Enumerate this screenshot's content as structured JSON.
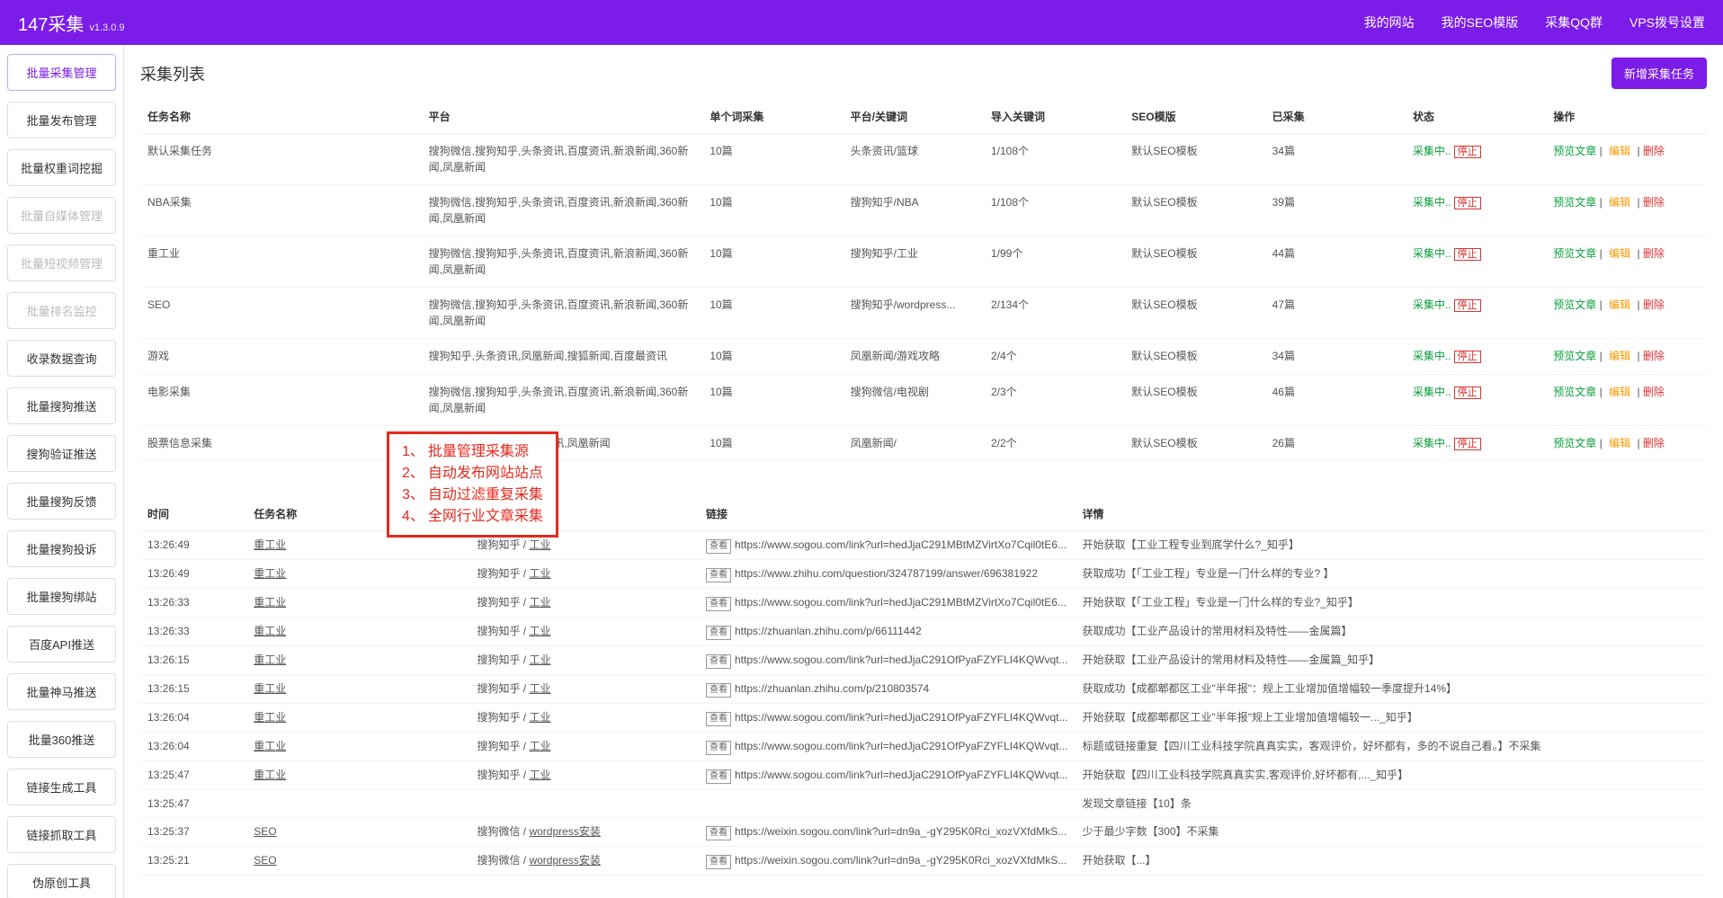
{
  "header": {
    "logo": "147采集",
    "version": "v1.3.0.9",
    "nav": [
      "我的网站",
      "我的SEO模版",
      "采集QQ群",
      "VPS拨号设置"
    ]
  },
  "sidebar": [
    {
      "label": "批量采集管理",
      "active": true
    },
    {
      "label": "批量发布管理"
    },
    {
      "label": "批量权重词挖掘"
    },
    {
      "label": "批量自媒体管理",
      "disabled": true
    },
    {
      "label": "批量短视频管理",
      "disabled": true
    },
    {
      "label": "批量排名监控",
      "disabled": true
    },
    {
      "label": "收录数据查询"
    },
    {
      "label": "批量搜狗推送"
    },
    {
      "label": "搜狗验证推送"
    },
    {
      "label": "批量搜狗反馈"
    },
    {
      "label": "批量搜狗投诉"
    },
    {
      "label": "批量搜狗绑站"
    },
    {
      "label": "百度API推送"
    },
    {
      "label": "批量神马推送"
    },
    {
      "label": "批量360推送"
    },
    {
      "label": "链接生成工具"
    },
    {
      "label": "链接抓取工具"
    },
    {
      "label": "伪原创工具"
    }
  ],
  "tasks": {
    "title": "采集列表",
    "add_btn": "新增采集任务",
    "headers": [
      "任务名称",
      "平台",
      "单个词采集",
      "平台/关键词",
      "导入关键词",
      "SEO模版",
      "已采集",
      "状态",
      "操作"
    ],
    "status_run": "采集中..",
    "status_stop": "停止",
    "ops": {
      "preview": "预览文章",
      "edit": "编辑",
      "del": "删除"
    },
    "rows": [
      {
        "name": "默认采集任务",
        "plat": "搜狗微信,搜狗知乎,头条资讯,百度资讯,新浪新闻,360新闻,凤凰新闻",
        "single": "10篇",
        "kw": "头条资讯/篮球",
        "import": "1/108个",
        "seo": "默认SEO模板",
        "cnt": "34篇"
      },
      {
        "name": "NBA采集",
        "plat": "搜狗微信,搜狗知乎,头条资讯,百度资讯,新浪新闻,360新闻,凤凰新闻",
        "single": "10篇",
        "kw": "搜狗知乎/NBA",
        "import": "1/108个",
        "seo": "默认SEO模板",
        "cnt": "39篇"
      },
      {
        "name": "重工业",
        "plat": "搜狗微信,搜狗知乎,头条资讯,百度资讯,新浪新闻,360新闻,凤凰新闻",
        "single": "10篇",
        "kw": "搜狗知乎/工业",
        "import": "1/99个",
        "seo": "默认SEO模板",
        "cnt": "44篇"
      },
      {
        "name": "SEO",
        "plat": "搜狗微信,搜狗知乎,头条资讯,百度资讯,新浪新闻,360新闻,凤凰新闻",
        "single": "10篇",
        "kw": "搜狗知乎/wordpress...",
        "import": "2/134个",
        "seo": "默认SEO模板",
        "cnt": "47篇"
      },
      {
        "name": "游戏",
        "plat": "搜狗知乎,头条资讯,凤凰新闻,搜狐新闻,百度最资讯",
        "single": "10篇",
        "kw": "凤凰新闻/游戏攻略",
        "import": "2/4个",
        "seo": "默认SEO模板",
        "cnt": "34篇"
      },
      {
        "name": "电影采集",
        "plat": "搜狗微信,搜狗知乎,头条资讯,百度资讯,新浪新闻,360新闻,凤凰新闻",
        "single": "10篇",
        "kw": "搜狗微信/电视剧",
        "import": "2/3个",
        "seo": "默认SEO模板",
        "cnt": "46篇"
      },
      {
        "name": "股票信息采集",
        "plat": "搜狗微信,头条资讯,百度资讯,凤凰新闻",
        "single": "10篇",
        "kw": "凤凰新闻/",
        "import": "2/2个",
        "seo": "默认SEO模板",
        "cnt": "26篇"
      }
    ]
  },
  "redbox": [
    {
      "n": "1、",
      "t": "批量管理采集源"
    },
    {
      "n": "2、",
      "t": "自动发布网站站点"
    },
    {
      "n": "3、",
      "t": "自动过滤重复采集"
    },
    {
      "n": "4、",
      "t": "全网行业文章采集"
    }
  ],
  "logs": {
    "headers": [
      "时间",
      "任务名称",
      "平台/关键词",
      "链接",
      "详情"
    ],
    "badge": "查看",
    "rows": [
      {
        "time": "13:26:49",
        "task": "重工业",
        "plat": "搜狗知乎 / ",
        "kw": "工业",
        "link": "https://www.sogou.com/link?url=hedJjaC291MBtMZVirtXo7Cqil0tE6...",
        "detail": "开始获取【工业工程专业到底学什么?_知乎】",
        "cls": ""
      },
      {
        "time": "13:26:49",
        "task": "重工业",
        "plat": "搜狗知乎 / ",
        "kw": "工业",
        "link": "https://www.zhihu.com/question/324787199/answer/696381922",
        "detail": "获取成功【「工业工程」专业是一门什么样的专业? 】",
        "cls": "ln-green"
      },
      {
        "time": "13:26:33",
        "task": "重工业",
        "plat": "搜狗知乎 / ",
        "kw": "工业",
        "link": "https://www.sogou.com/link?url=hedJjaC291MBtMZVirtXo7Cqil0tE6...",
        "detail": "开始获取【「工业工程」专业是一门什么样的专业?_知乎】",
        "cls": ""
      },
      {
        "time": "13:26:33",
        "task": "重工业",
        "plat": "搜狗知乎 / ",
        "kw": "工业",
        "link": "https://zhuanlan.zhihu.com/p/66111442",
        "detail": "获取成功【工业产品设计的常用材料及特性——金属篇】",
        "cls": "ln-green"
      },
      {
        "time": "13:26:15",
        "task": "重工业",
        "plat": "搜狗知乎 / ",
        "kw": "工业",
        "link": "https://www.sogou.com/link?url=hedJjaC291OfPyaFZYFLI4KQWvqt...",
        "detail": "开始获取【工业产品设计的常用材料及特性——金属篇_知乎】",
        "cls": ""
      },
      {
        "time": "13:26:15",
        "task": "重工业",
        "plat": "搜狗知乎 / ",
        "kw": "工业",
        "link": "https://zhuanlan.zhihu.com/p/210803574",
        "detail": "获取成功【成都郫都区工业\"半年报\"：规上工业增加值增幅较一季度提升14%】",
        "cls": "ln-green"
      },
      {
        "time": "13:26:04",
        "task": "重工业",
        "plat": "搜狗知乎 / ",
        "kw": "工业",
        "link": "https://www.sogou.com/link?url=hedJjaC291OfPyaFZYFLI4KQWvqt...",
        "detail": "开始获取【成都郫都区工业\"半年报\"规上工业增加值增幅较一..._知乎】",
        "cls": ""
      },
      {
        "time": "13:26:04",
        "task": "重工业",
        "plat": "搜狗知乎 / ",
        "kw": "工业",
        "link": "https://www.sogou.com/link?url=hedJjaC291OfPyaFZYFLI4KQWvqt...",
        "detail": "标题或链接重复【四川工业科技学院真真实实，客观评价，好坏都有，多的不说自己看。】不采集",
        "cls": "ln-red"
      },
      {
        "time": "13:25:47",
        "task": "重工业",
        "plat": "搜狗知乎 / ",
        "kw": "工业",
        "link": "https://www.sogou.com/link?url=hedJjaC291OfPyaFZYFLI4KQWvqt...",
        "detail": "开始获取【四川工业科技学院真真实实,客观评价,好坏都有,..._知乎】",
        "cls": ""
      },
      {
        "time": "13:25:47",
        "task": "",
        "plat": "",
        "kw": "",
        "link": "",
        "detail": "发现文章链接【10】条",
        "cls": "",
        "nolink": true
      },
      {
        "time": "13:25:37",
        "task": "SEO",
        "plat": "搜狗微信 / ",
        "kw": "wordpress安装",
        "link": "https://weixin.sogou.com/link?url=dn9a_-gY295K0Rci_xozVXfdMkS...",
        "detail": "少于最少字数【300】不采集",
        "cls": "ln-red"
      },
      {
        "time": "13:25:21",
        "task": "SEO",
        "plat": "搜狗微信 / ",
        "kw": "wordpress安装",
        "link": "https://weixin.sogou.com/link?url=dn9a_-gY295K0Rci_xozVXfdMkS...",
        "detail": "开始获取【...】",
        "cls": ""
      }
    ]
  }
}
